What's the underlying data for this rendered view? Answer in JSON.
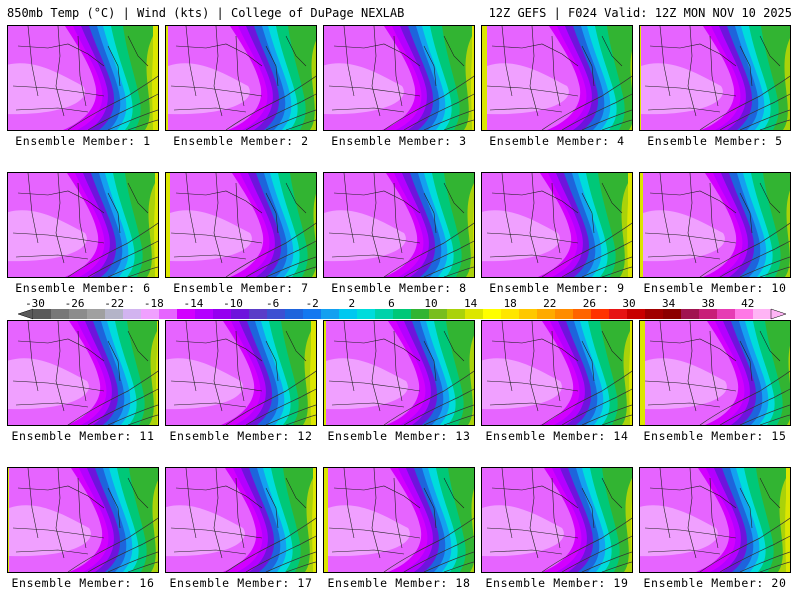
{
  "header": {
    "left": "850mb Temp (°C) | Wind (kts) | College of DuPage NEXLAB",
    "right": "12Z GEFS | F024 Valid: 12Z MON NOV 10 2025"
  },
  "members": [
    {
      "label": "Ensemble Member: 1"
    },
    {
      "label": "Ensemble Member: 2"
    },
    {
      "label": "Ensemble Member: 3"
    },
    {
      "label": "Ensemble Member: 4"
    },
    {
      "label": "Ensemble Member: 5"
    },
    {
      "label": "Ensemble Member: 6"
    },
    {
      "label": "Ensemble Member: 7"
    },
    {
      "label": "Ensemble Member: 8"
    },
    {
      "label": "Ensemble Member: 9"
    },
    {
      "label": "Ensemble Member: 10"
    },
    {
      "label": "Ensemble Member: 11"
    },
    {
      "label": "Ensemble Member: 12"
    },
    {
      "label": "Ensemble Member: 13"
    },
    {
      "label": "Ensemble Member: 14"
    },
    {
      "label": "Ensemble Member: 15"
    },
    {
      "label": "Ensemble Member: 16"
    },
    {
      "label": "Ensemble Member: 17"
    },
    {
      "label": "Ensemble Member: 18"
    },
    {
      "label": "Ensemble Member: 19"
    },
    {
      "label": "Ensemble Member: 20"
    }
  ],
  "colorbar": {
    "labels": [
      "-30",
      "-26",
      "-22",
      "-18",
      "-14",
      "-10",
      "-6",
      "-2",
      "2",
      "6",
      "10",
      "14",
      "18",
      "22",
      "26",
      "30",
      "34",
      "38",
      "42"
    ],
    "colors": [
      "#5a5a5a",
      "#787878",
      "#8c8c8c",
      "#a0a0a0",
      "#b4b4c8",
      "#d2b4f0",
      "#f0a0ff",
      "#e664ff",
      "#d200ff",
      "#b400ff",
      "#9600f0",
      "#6e14dc",
      "#5a3cc8",
      "#3c50d2",
      "#1e64dc",
      "#1478f0",
      "#14a0f0",
      "#00c8f0",
      "#00dcdc",
      "#00d2aa",
      "#00c878",
      "#32b432",
      "#78be1e",
      "#aad20a",
      "#dce600",
      "#ffff00",
      "#ffe600",
      "#ffc800",
      "#ffaa00",
      "#ff8c00",
      "#ff6400",
      "#ff3200",
      "#e61414",
      "#c80000",
      "#a00000",
      "#8c0000",
      "#a01450",
      "#c81e78",
      "#e63cb4",
      "#ff78e6",
      "#ffb4f5"
    ]
  }
}
